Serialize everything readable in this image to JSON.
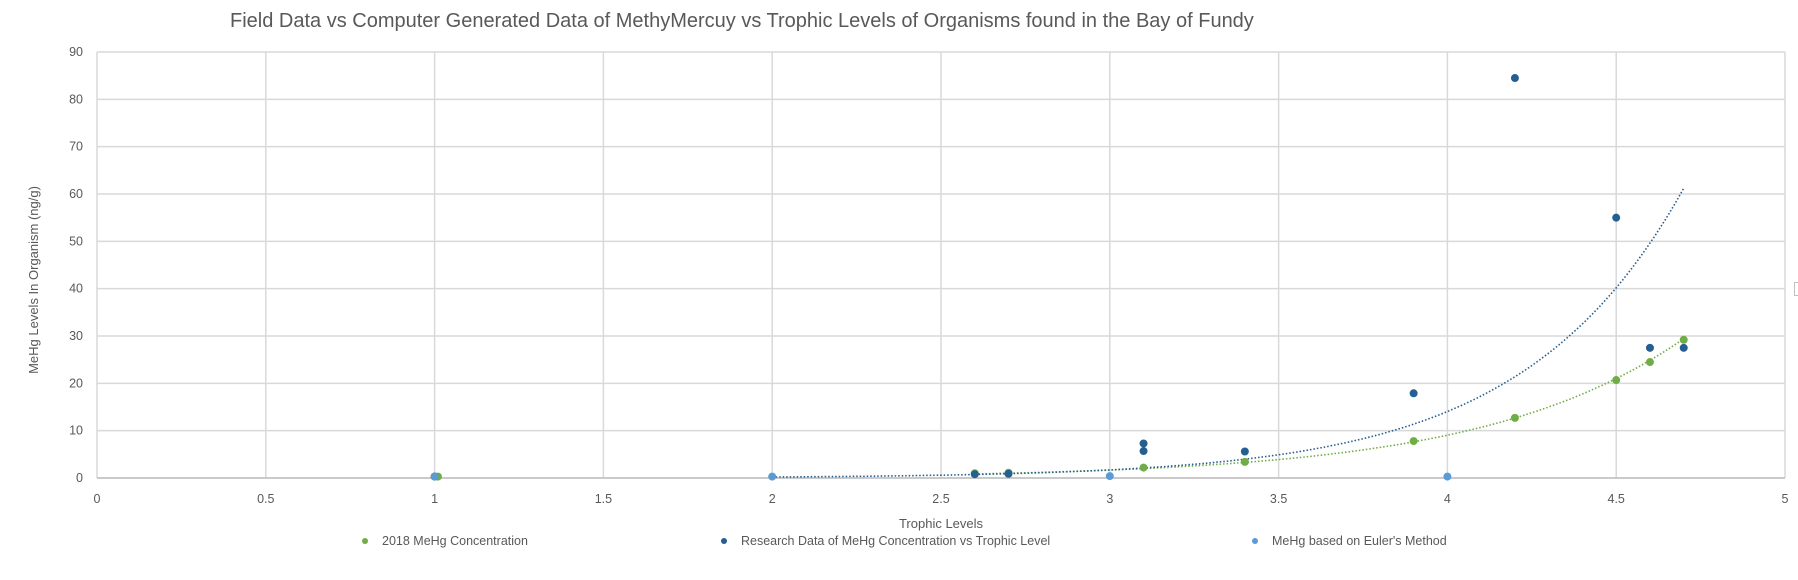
{
  "chart_data": {
    "type": "scatter",
    "title": "Field Data vs  Computer Generated Data of MethyMercuy vs Trophic Levels of Organisms found in the Bay of Fundy",
    "xlabel": "Trophic Levels",
    "ylabel": "MeHg Levels In Organism (ng/g)",
    "xlim": [
      0,
      5
    ],
    "ylim": [
      0,
      90
    ],
    "xticks": [
      0,
      0.5,
      1,
      1.5,
      2,
      2.5,
      3,
      3.5,
      4,
      4.5,
      5
    ],
    "yticks": [
      0,
      10,
      20,
      30,
      40,
      50,
      60,
      70,
      80,
      90
    ],
    "grid": true,
    "legend_position": "bottom",
    "series": [
      {
        "name": "2018 MeHg Concentration",
        "color": "#70ad47",
        "points": [
          [
            1.0,
            0.3
          ],
          [
            1.01,
            0.3
          ],
          [
            2.6,
            1.0
          ],
          [
            2.7,
            1.1
          ],
          [
            3.1,
            2.2
          ],
          [
            3.4,
            3.4
          ],
          [
            3.9,
            7.8
          ],
          [
            4.2,
            12.7
          ],
          [
            4.5,
            20.7
          ],
          [
            4.6,
            24.5
          ],
          [
            4.7,
            29.2
          ]
        ],
        "trendline": {
          "type": "exponential",
          "color": "#70ad47",
          "a": 0.0107,
          "b": 1.685,
          "x_range": [
            2.6,
            4.7
          ]
        }
      },
      {
        "name": "Research Data of MeHg Concentration vs Trophic Level",
        "color": "#255e91",
        "points": [
          [
            1.0,
            0.3
          ],
          [
            2.6,
            0.8
          ],
          [
            2.7,
            0.9
          ],
          [
            3.1,
            5.7
          ],
          [
            3.1,
            7.3
          ],
          [
            3.4,
            5.6
          ],
          [
            3.9,
            17.9
          ],
          [
            4.2,
            84.5
          ],
          [
            4.5,
            55.0
          ],
          [
            4.6,
            27.5
          ],
          [
            4.7,
            27.5
          ]
        ],
        "trendline": {
          "type": "exponential",
          "color": "#255e91",
          "a": 0.00312,
          "b": 2.103,
          "x_range": [
            2.0,
            4.7
          ]
        }
      },
      {
        "name": "MeHg based on Euler's Method",
        "color": "#5b9bd5",
        "points": [
          [
            1.0,
            0.3
          ],
          [
            2.0,
            0.3
          ],
          [
            3.0,
            0.4
          ],
          [
            4.0,
            0.3
          ]
        ]
      }
    ]
  }
}
